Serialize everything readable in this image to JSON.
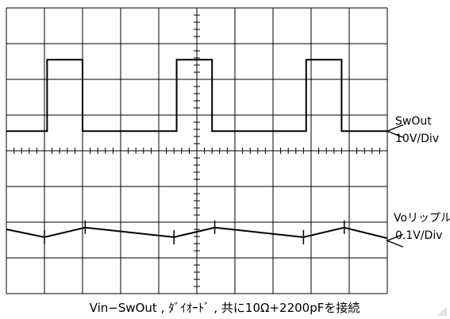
{
  "chart_data": {
    "type": "line",
    "grid": true,
    "divisions": {
      "x": 10,
      "y": 8
    },
    "series": [
      {
        "name": "SwOut",
        "scale": "10V/Div",
        "shape": "square-pulse",
        "pulse_starts_div": [
          1.07,
          4.47,
          7.87
        ],
        "pulse_width_div": 0.93,
        "high_div": 6.55,
        "low_div": 4.55
      },
      {
        "name": "Voリップル",
        "scale": "0.1V/Div",
        "shape": "sawtooth-ripple",
        "min_points_div": [
          [
            1.0,
            1.58
          ],
          [
            4.4,
            1.58
          ],
          [
            7.8,
            1.58
          ]
        ],
        "max_points_div": [
          [
            2.07,
            1.85
          ],
          [
            5.47,
            1.85
          ],
          [
            8.87,
            1.85
          ]
        ],
        "start_div": 1.8,
        "end_div": 1.55
      }
    ],
    "labels": {
      "ch1_name": "SwOut",
      "ch1_scale": "10V/Div",
      "ch2_name": "Voリップル",
      "ch2_scale": "0.1V/Div"
    },
    "caption": "Vin−SwOut , ﾀﾞｲｵｰﾄﾞ , 共に10Ω+2200pFを接続"
  }
}
